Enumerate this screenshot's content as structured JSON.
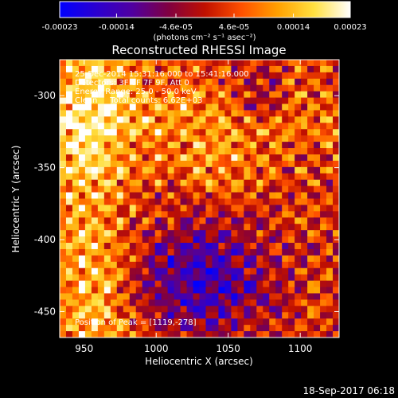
{
  "colorbar": {
    "tick_labels": [
      "-0.00023",
      "-0.00014",
      "-4.6e-05",
      "4.6e-05",
      "0.00014",
      "0.00023"
    ],
    "tick_values": [
      -0.00023,
      -0.00014,
      -4.6e-05,
      4.6e-05,
      0.00014,
      0.00023
    ],
    "range": [
      -0.00023,
      0.00023
    ],
    "unit_label": "(photons cm⁻² s⁻¹ asec⁻²)"
  },
  "info": {
    "line1": "25-Dec-2014 15:31:16.000 to 15:41:16.000",
    "line2": "Detectors: 3F 6F 7F 9F, Att 0",
    "line3": "Energy Range: 25.0 - 50.0 keV",
    "line4": "Clean     Total counts: 6.62E+03",
    "peak": "Position of Peak = [1119,-278]"
  },
  "footer": {
    "timestamp": "18-Sep-2017 06:18"
  },
  "chart_data": {
    "type": "heatmap",
    "title": "Reconstructed RHESSI Image",
    "xlabel": "Heliocentric X (arcsec)",
    "ylabel": "Heliocentric Y (arcsec)",
    "xlim": [
      933,
      1127
    ],
    "ylim": [
      -468,
      -275
    ],
    "x_ticks": [
      950,
      1000,
      1050,
      1100
    ],
    "y_ticks": [
      -300,
      -350,
      -400,
      -450
    ],
    "x_tick_labels": [
      "950",
      "1000",
      "1050",
      "1100"
    ],
    "y_tick_labels": [
      "-300",
      "-350",
      "-400",
      "-450"
    ],
    "colormap": "blue-purple-red-yellow-white",
    "colors": {
      "colormap_stops": [
        "#0000ff",
        "#2a00d0",
        "#5000a0",
        "#800040",
        "#c01000",
        "#ff5000",
        "#ffa000",
        "#ffe040",
        "#ffffff"
      ]
    },
    "peak_position": [
      1119,
      -278
    ]
  }
}
